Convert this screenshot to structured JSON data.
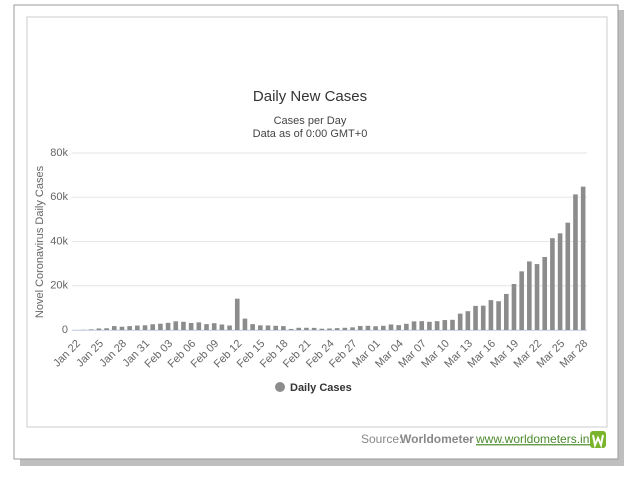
{
  "chart_data": {
    "type": "bar",
    "title": "Daily New Cases",
    "subtitle": [
      "Cases per Day",
      "Data as of 0:00 GMT+0"
    ],
    "y_label": "Novel Coronavirus Daily Cases",
    "categories": [
      "Jan 22",
      null,
      null,
      "Jan 25",
      null,
      null,
      "Jan 28",
      null,
      null,
      "Jan 31",
      null,
      null,
      "Feb 03",
      null,
      null,
      "Feb 06",
      null,
      null,
      "Feb 09",
      null,
      null,
      "Feb 12",
      null,
      null,
      "Feb 15",
      null,
      null,
      "Feb 18",
      null,
      null,
      "Feb 21",
      null,
      null,
      "Feb 24",
      null,
      null,
      "Feb 27",
      null,
      null,
      "Mar 01",
      null,
      null,
      "Mar 04",
      null,
      null,
      "Mar 07",
      null,
      null,
      "Mar 10",
      null,
      null,
      "Mar 13",
      null,
      null,
      "Mar 16",
      null,
      null,
      "Mar 19",
      null,
      null,
      "Mar 22",
      null,
      null,
      "Mar 25",
      null,
      null,
      "Mar 28"
    ],
    "series": [
      {
        "name": "Daily Cases",
        "color": "#8c8c8c",
        "values": [
          0,
          100,
          290,
          690,
          790,
          1770,
          1480,
          1760,
          2010,
          2130,
          2600,
          2840,
          3240,
          3920,
          3720,
          3160,
          3450,
          2660,
          3060,
          2490,
          2020,
          14150,
          5150,
          2660,
          2100,
          2060,
          1890,
          1750,
          480,
          1000,
          1000,
          960,
          580,
          670,
          850,
          1000,
          1200,
          1800,
          1900,
          1700,
          1900,
          2500,
          2200,
          2800,
          3900,
          4000,
          3700,
          4000,
          4500,
          4600,
          7400,
          8500,
          10900,
          11000,
          13500,
          13000,
          16300,
          20800,
          26500,
          31000,
          29800,
          33000,
          41500,
          43700,
          48500,
          61300,
          64800
        ]
      }
    ],
    "ylim": [
      0,
      80000
    ],
    "yticks": [
      0,
      {
        "value": 20000,
        "label": "20k"
      },
      {
        "value": 40000,
        "label": "40k"
      },
      {
        "value": 60000,
        "label": "60k"
      },
      {
        "value": 80000,
        "label": "80k"
      }
    ],
    "grid": true,
    "legend": "bottom"
  },
  "footer": {
    "prefix": "Source:",
    "source": "Worldometer",
    "separator": "-",
    "link": "www.worldometers.info"
  }
}
